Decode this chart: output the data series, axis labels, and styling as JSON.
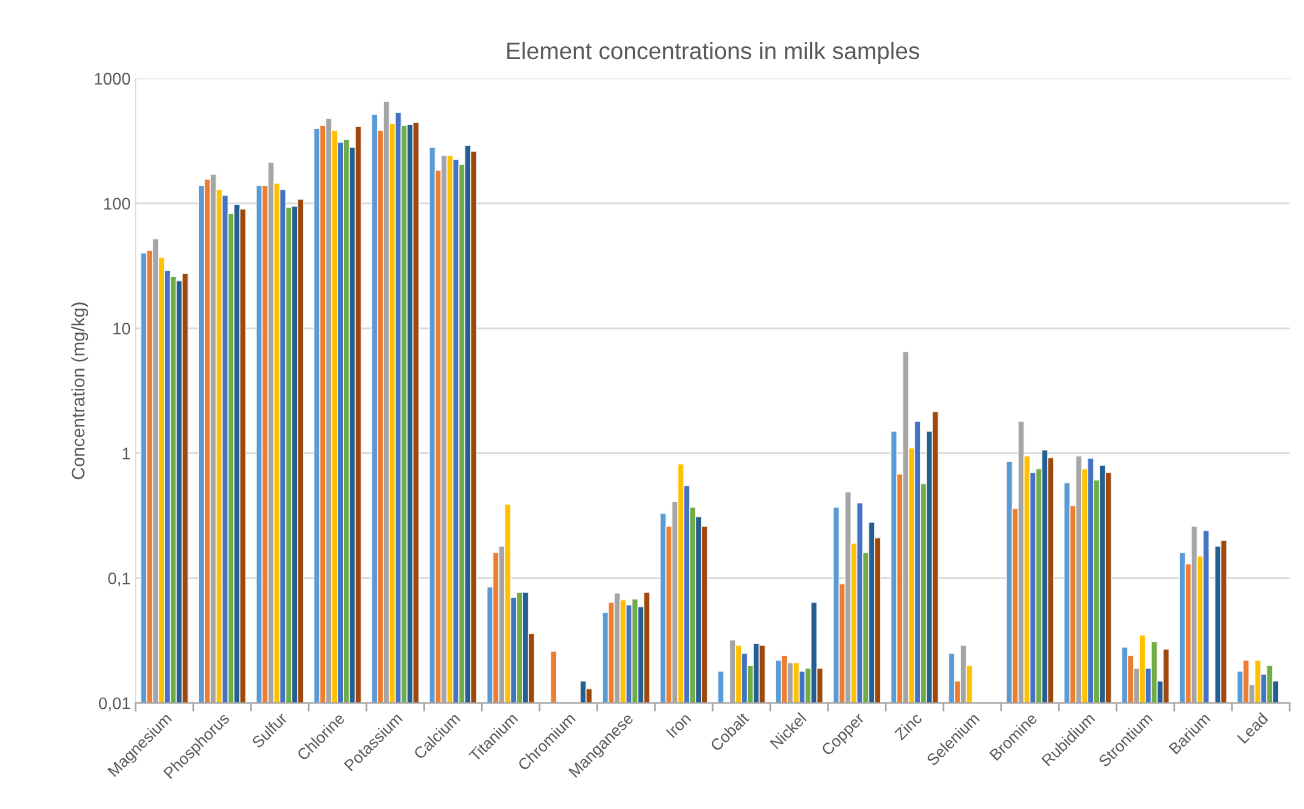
{
  "chart_data": {
    "type": "bar",
    "title": "Element concentrations in milk samples",
    "ylabel": "Concentration (mg/kg)",
    "categories": [
      "Magnesium",
      "Phosphorus",
      "Sulfur",
      "Chlorine",
      "Potassium",
      "Calcium",
      "Titanium",
      "Chromium",
      "Manganese",
      "Iron",
      "Cobalt",
      "Nickel",
      "Copper",
      "Zinc",
      "Selenium",
      "Bromine",
      "Rubidium",
      "Strontium",
      "Barium",
      "Lead"
    ],
    "series": [
      {
        "color": "#5b9bd5",
        "values": [
          40,
          139,
          139,
          398,
          515,
          281,
          0.085,
          null,
          0.053,
          0.33,
          0.018,
          0.022,
          0.37,
          1.5,
          0.025,
          0.86,
          0.58,
          0.028,
          0.16,
          0.018
        ]
      },
      {
        "color": "#ed7d31",
        "values": [
          42,
          156,
          139,
          421,
          384,
          184,
          0.16,
          0.026,
          0.064,
          0.26,
          null,
          0.024,
          0.09,
          0.68,
          0.015,
          0.36,
          0.38,
          0.024,
          0.13,
          0.022
        ]
      },
      {
        "color": "#a5a5a5",
        "values": [
          52,
          171,
          213,
          479,
          655,
          242,
          0.18,
          null,
          0.076,
          0.41,
          0.032,
          0.021,
          0.49,
          6.5,
          0.029,
          1.8,
          0.95,
          0.019,
          0.26,
          0.014
        ]
      },
      {
        "color": "#ffc000",
        "values": [
          37,
          129,
          145,
          384,
          437,
          242,
          0.39,
          null,
          0.067,
          0.82,
          0.029,
          0.021,
          0.19,
          1.1,
          0.02,
          0.95,
          0.75,
          0.035,
          0.15,
          0.022
        ]
      },
      {
        "color": "#4472c4",
        "values": [
          29,
          116,
          129,
          308,
          535,
          225,
          0.07,
          null,
          0.061,
          0.55,
          0.025,
          0.018,
          0.4,
          1.8,
          null,
          0.7,
          0.91,
          0.019,
          0.24,
          0.017
        ]
      },
      {
        "color": "#70ad47",
        "values": [
          26,
          83,
          93,
          325,
          421,
          205,
          0.077,
          null,
          0.068,
          0.37,
          0.02,
          0.019,
          0.16,
          0.57,
          null,
          0.75,
          0.61,
          0.031,
          null,
          0.02
        ]
      },
      {
        "color": "#255e91",
        "values": [
          24,
          98,
          95,
          281,
          428,
          291,
          0.077,
          0.015,
          0.059,
          0.31,
          0.03,
          0.064,
          0.28,
          1.5,
          null,
          1.06,
          0.8,
          0.015,
          0.18,
          0.015
        ]
      },
      {
        "color": "#9e480e",
        "values": [
          27.5,
          90,
          108,
          413,
          445,
          261,
          0.036,
          0.013,
          0.077,
          0.26,
          0.029,
          0.019,
          0.21,
          2.15,
          null,
          0.92,
          0.7,
          0.027,
          0.2,
          null
        ]
      }
    ],
    "log": "y",
    "ylim": [
      0.01,
      1000
    ],
    "yticks": [
      {
        "value": 0.01,
        "label": "0,01"
      },
      {
        "value": 0.1,
        "label": "0,1"
      },
      1,
      10,
      100,
      1000
    ],
    "grid": "y"
  }
}
